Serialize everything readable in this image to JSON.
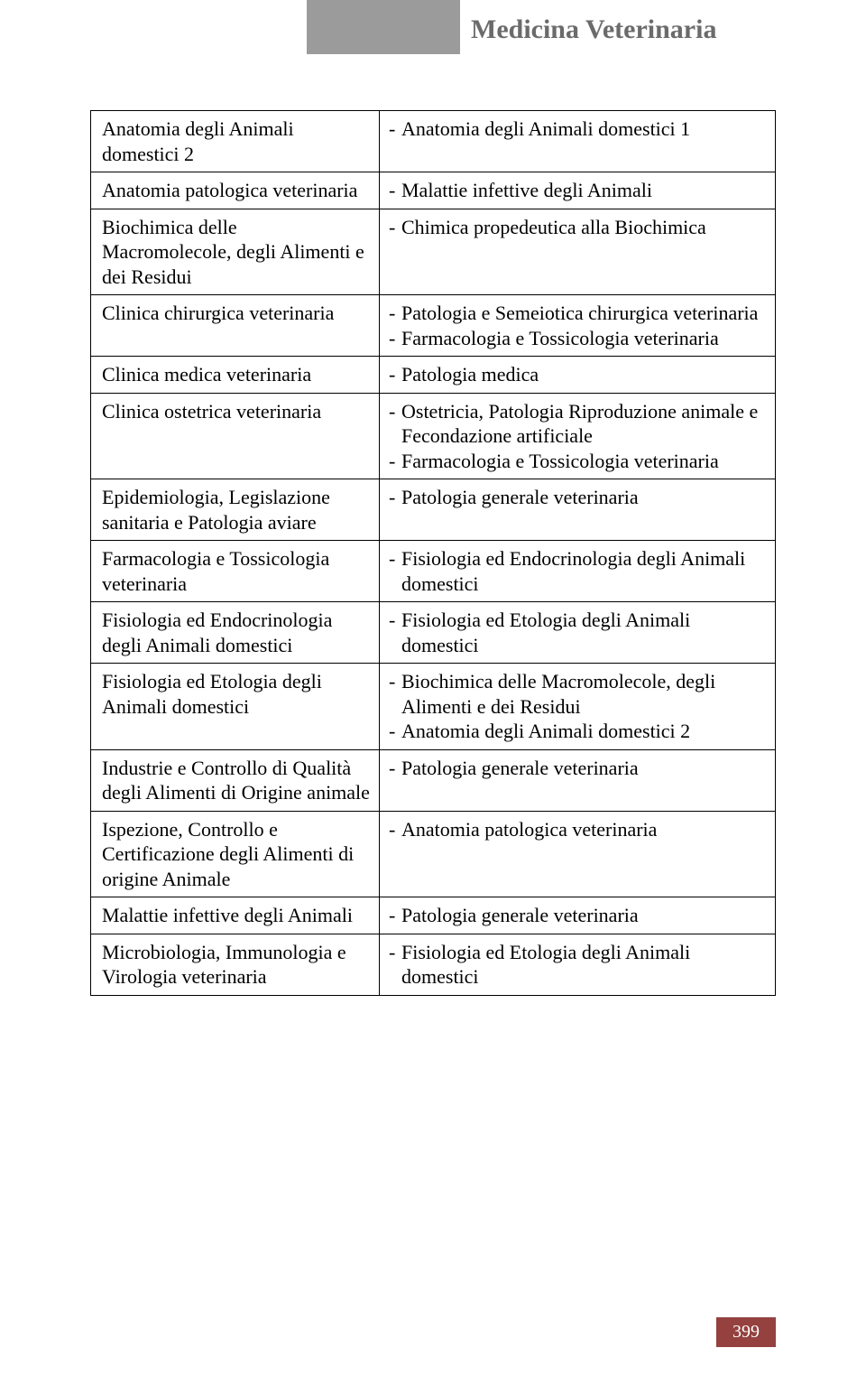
{
  "header": {
    "title": "Medicina Veterinaria"
  },
  "page_number": "399",
  "colors": {
    "header_tab_bg": "#9b9b9b",
    "header_title_color": "#6b6b6b",
    "page_num_bg": "#94413f",
    "page_num_color": "#ffffff",
    "border_color": "#000000",
    "text_color": "#000000",
    "background": "#ffffff"
  },
  "table": {
    "rows": [
      {
        "left": "Anatomia degli Animali domestici 2",
        "right": [
          "Anatomia degli Animali domestici 1"
        ]
      },
      {
        "left": "Anatomia patologica veterinaria",
        "right": [
          "Malattie infettive degli Animali"
        ]
      },
      {
        "left": "Biochimica delle Macromolecole, degli Alimenti e dei Residui",
        "right": [
          "Chimica propedeutica alla Biochimica"
        ]
      },
      {
        "left": "Clinica chirurgica veterinaria",
        "right": [
          "Patologia e Semeiotica chirurgica veterinaria",
          "Farmacologia e Tossicologia veterinaria"
        ]
      },
      {
        "left": "Clinica medica veterinaria",
        "right": [
          "Patologia medica"
        ]
      },
      {
        "left": "Clinica ostetrica veterinaria",
        "right": [
          "Ostetricia, Patologia Riproduzione animale e Fecondazione artificiale",
          "Farmacologia e Tossicologia veterinaria"
        ]
      },
      {
        "left": "Epidemiologia, Legislazione sanitaria e Patologia aviare",
        "right": [
          "Patologia generale veterinaria"
        ]
      },
      {
        "left": "Farmacologia e Tossicologia veterinaria",
        "right": [
          "Fisiologia ed Endocrinologia degli Animali domestici"
        ]
      },
      {
        "left": "Fisiologia ed Endocrinologia degli Animali domestici",
        "right": [
          "Fisiologia ed Etologia degli Animali domestici"
        ]
      },
      {
        "left": "Fisiologia ed Etologia degli Animali domestici",
        "right": [
          "Biochimica delle Macromolecole, degli Alimenti e dei Residui",
          "Anatomia degli Animali domestici 2"
        ]
      },
      {
        "left": "Industrie e Controllo di Qualità degli Alimenti di Origine animale",
        "right": [
          "Patologia generale veterinaria"
        ]
      },
      {
        "left": "Ispezione, Controllo e Certificazione degli Alimenti di origine Animale",
        "right": [
          "Anatomia patologica veterinaria"
        ]
      },
      {
        "left": "Malattie infettive degli Animali",
        "right": [
          "Patologia generale veterinaria"
        ]
      },
      {
        "left": "Microbiologia, Immunologia e Virologia veterinaria",
        "right": [
          "Fisiologia ed Etologia degli Animali domestici"
        ]
      }
    ]
  }
}
